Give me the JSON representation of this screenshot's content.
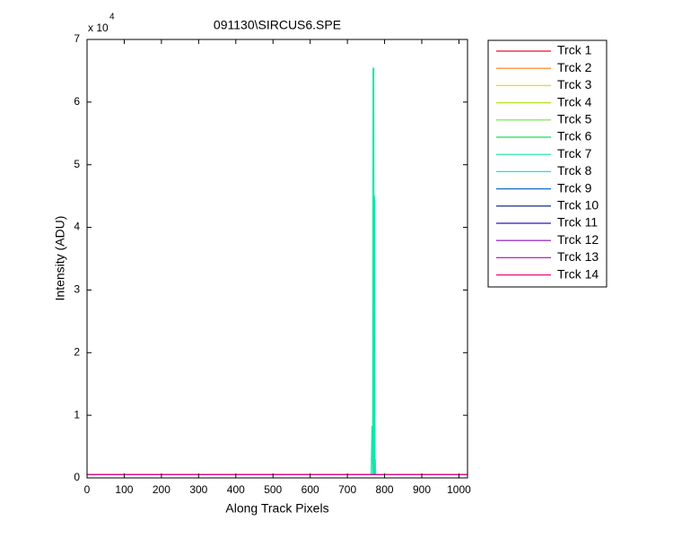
{
  "chart_data": {
    "type": "line",
    "title": "091130\\SIRCUS6.SPE",
    "xlabel": "Along Track Pixels",
    "ylabel": "Intensity (ADU)",
    "y_exponent": {
      "base": "x 10",
      "power": "4"
    },
    "x": [
      0,
      764,
      766,
      768,
      769,
      770,
      771,
      772,
      773,
      774,
      775,
      776,
      778,
      1023
    ],
    "series": [
      {
        "name": "Trck 1",
        "color": "#e8102a",
        "values": [
          550,
          550,
          550,
          550,
          550,
          550,
          550,
          550,
          550,
          550,
          550,
          550,
          550,
          550
        ]
      },
      {
        "name": "Trck 2",
        "color": "#ff7a10",
        "values": [
          550,
          550,
          550,
          550,
          550,
          550,
          550,
          550,
          550,
          550,
          550,
          550,
          550,
          550
        ]
      },
      {
        "name": "Trck 3",
        "color": "#f0d800",
        "values": [
          550,
          550,
          550,
          550,
          550,
          550,
          550,
          550,
          550,
          550,
          550,
          550,
          550,
          550
        ]
      },
      {
        "name": "Trck 4",
        "color": "#b4e020",
        "values": [
          550,
          550,
          550,
          550,
          550,
          550,
          550,
          550,
          550,
          550,
          550,
          550,
          550,
          550
        ]
      },
      {
        "name": "Trck 5",
        "color": "#70e040",
        "values": [
          550,
          550,
          550,
          550,
          550,
          550,
          550,
          550,
          550,
          550,
          550,
          550,
          550,
          550
        ]
      },
      {
        "name": "Trck 6",
        "color": "#10e050",
        "values": [
          550,
          550,
          550,
          550,
          550,
          550,
          550,
          550,
          550,
          550,
          550,
          550,
          550,
          550
        ]
      },
      {
        "name": "Trck 7",
        "color": "#10e8a8",
        "values": [
          550,
          550,
          8300,
          550,
          65500,
          550,
          65500,
          550,
          45000,
          550,
          3000,
          550,
          550,
          550
        ]
      },
      {
        "name": "Trck 8",
        "color": "#20e0e0",
        "values": [
          550,
          550,
          550,
          550,
          550,
          550,
          550,
          550,
          550,
          550,
          550,
          550,
          550,
          550
        ]
      },
      {
        "name": "Trck 9",
        "color": "#1070c0",
        "values": [
          550,
          550,
          550,
          550,
          550,
          550,
          550,
          550,
          550,
          550,
          550,
          550,
          550,
          550
        ]
      },
      {
        "name": "Trck 10",
        "color": "#001a70",
        "values": [
          550,
          550,
          550,
          550,
          550,
          550,
          550,
          550,
          550,
          550,
          550,
          550,
          550,
          550
        ]
      },
      {
        "name": "Trck 11",
        "color": "#3010c0",
        "values": [
          550,
          550,
          550,
          550,
          550,
          550,
          550,
          550,
          550,
          550,
          550,
          550,
          550,
          550
        ]
      },
      {
        "name": "Trck 12",
        "color": "#8010c0",
        "values": [
          550,
          550,
          550,
          550,
          550,
          550,
          550,
          550,
          550,
          550,
          550,
          550,
          550,
          550
        ]
      },
      {
        "name": "Trck 13",
        "color": "#d010d0",
        "values": [
          550,
          550,
          550,
          550,
          550,
          550,
          550,
          550,
          550,
          550,
          550,
          550,
          550,
          550
        ]
      },
      {
        "name": "Trck 14",
        "color": "#e81078",
        "values": [
          550,
          550,
          550,
          550,
          550,
          550,
          550,
          550,
          550,
          550,
          550,
          550,
          550,
          550
        ]
      }
    ],
    "xlim": [
      0,
      1023
    ],
    "xticks": [
      0,
      100,
      200,
      300,
      400,
      500,
      600,
      700,
      800,
      900,
      1000
    ],
    "ylim": [
      0,
      70000
    ],
    "yticks": [
      {
        "value": 0,
        "label": "0"
      },
      {
        "value": 10000,
        "label": "1"
      },
      {
        "value": 20000,
        "label": "2"
      },
      {
        "value": 30000,
        "label": "3"
      },
      {
        "value": 40000,
        "label": "4"
      },
      {
        "value": 50000,
        "label": "5"
      },
      {
        "value": 60000,
        "label": "6"
      },
      {
        "value": 70000,
        "label": "7"
      }
    ],
    "grid": false,
    "legend": "outside-right"
  }
}
